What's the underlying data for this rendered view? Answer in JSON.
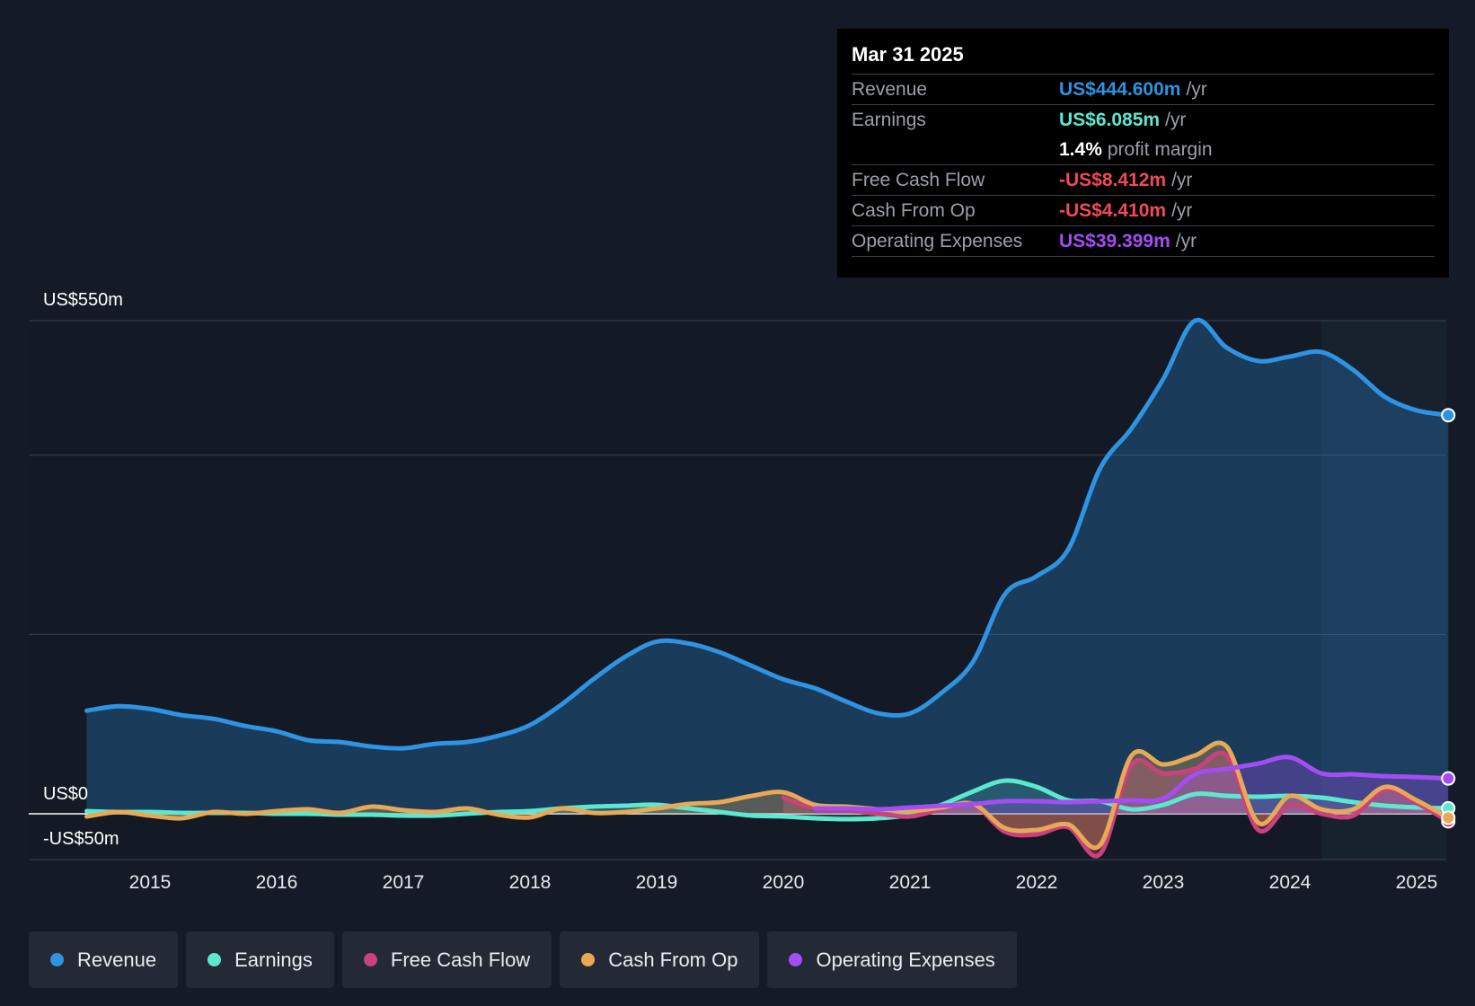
{
  "tooltip": {
    "date": "Mar 31 2025",
    "rows": [
      {
        "label": "Revenue",
        "value": "US$444.600m",
        "unit": "/yr",
        "color": "#2e93e2"
      },
      {
        "label": "Earnings",
        "value": "US$6.085m",
        "unit": "/yr",
        "color": "#5ce8cf"
      },
      {
        "label": "",
        "value": "1.4%",
        "unit": "profit margin",
        "color": "#ffffff"
      },
      {
        "label": "Free Cash Flow",
        "value": "-US$8.412m",
        "unit": "/yr",
        "color": "#ef4b55"
      },
      {
        "label": "Cash From Op",
        "value": "-US$4.410m",
        "unit": "/yr",
        "color": "#ef4b55"
      },
      {
        "label": "Operating Expenses",
        "value": "US$39.399m",
        "unit": "/yr",
        "color": "#a34ef3"
      }
    ]
  },
  "legend": [
    {
      "label": "Revenue",
      "color": "#2e93e2"
    },
    {
      "label": "Earnings",
      "color": "#5ce8cf"
    },
    {
      "label": "Free Cash Flow",
      "color": "#c9417d"
    },
    {
      "label": "Cash From Op",
      "color": "#e8a957"
    },
    {
      "label": "Operating Expenses",
      "color": "#a34ef3"
    }
  ],
  "chart_data": {
    "type": "area",
    "title": "",
    "ylim": [
      -50,
      550
    ],
    "y_tick_labels": {
      "top": "US$550m",
      "zero": "US$0",
      "bottom": "-US$50m"
    },
    "x_tick_labels": [
      "2015",
      "2016",
      "2017",
      "2018",
      "2019",
      "2020",
      "2021",
      "2022",
      "2023",
      "2024",
      "2025"
    ],
    "series": [
      {
        "name": "Revenue",
        "color": "#2e93e2",
        "points": [
          [
            2014.5,
            115
          ],
          [
            2014.75,
            120
          ],
          [
            2015.0,
            117
          ],
          [
            2015.25,
            110
          ],
          [
            2015.5,
            106
          ],
          [
            2015.75,
            98
          ],
          [
            2016.0,
            92
          ],
          [
            2016.25,
            82
          ],
          [
            2016.5,
            80
          ],
          [
            2016.75,
            75
          ],
          [
            2017.0,
            73
          ],
          [
            2017.25,
            78
          ],
          [
            2017.5,
            80
          ],
          [
            2017.75,
            87
          ],
          [
            2018.0,
            99
          ],
          [
            2018.25,
            122
          ],
          [
            2018.5,
            150
          ],
          [
            2018.75,
            175
          ],
          [
            2019.0,
            192
          ],
          [
            2019.25,
            190
          ],
          [
            2019.5,
            180
          ],
          [
            2019.75,
            165
          ],
          [
            2020.0,
            150
          ],
          [
            2020.25,
            140
          ],
          [
            2020.5,
            125
          ],
          [
            2020.75,
            112
          ],
          [
            2021.0,
            112
          ],
          [
            2021.25,
            135
          ],
          [
            2021.5,
            170
          ],
          [
            2021.75,
            245
          ],
          [
            2022.0,
            265
          ],
          [
            2022.25,
            295
          ],
          [
            2022.5,
            385
          ],
          [
            2022.75,
            430
          ],
          [
            2023.0,
            485
          ],
          [
            2023.25,
            550
          ],
          [
            2023.5,
            520
          ],
          [
            2023.75,
            505
          ],
          [
            2024.0,
            510
          ],
          [
            2024.25,
            515
          ],
          [
            2024.5,
            495
          ],
          [
            2024.75,
            465
          ],
          [
            2025.0,
            450
          ],
          [
            2025.25,
            444.6
          ]
        ]
      },
      {
        "name": "Earnings",
        "color": "#5ce8cf",
        "points": [
          [
            2014.5,
            3
          ],
          [
            2014.75,
            2
          ],
          [
            2015.0,
            2
          ],
          [
            2015.25,
            1
          ],
          [
            2015.5,
            1
          ],
          [
            2015.75,
            1
          ],
          [
            2016.0,
            0
          ],
          [
            2016.25,
            0
          ],
          [
            2016.5,
            -1
          ],
          [
            2016.75,
            -1
          ],
          [
            2017.0,
            -2
          ],
          [
            2017.25,
            -2
          ],
          [
            2017.5,
            0
          ],
          [
            2017.75,
            2
          ],
          [
            2018.0,
            3
          ],
          [
            2018.25,
            6
          ],
          [
            2018.5,
            8
          ],
          [
            2018.75,
            9
          ],
          [
            2019.0,
            10
          ],
          [
            2019.25,
            6
          ],
          [
            2019.5,
            2
          ],
          [
            2019.75,
            -2
          ],
          [
            2020.0,
            -3
          ],
          [
            2020.25,
            -5
          ],
          [
            2020.5,
            -6
          ],
          [
            2020.75,
            -5
          ],
          [
            2021.0,
            -1
          ],
          [
            2021.25,
            10
          ],
          [
            2021.5,
            25
          ],
          [
            2021.75,
            37
          ],
          [
            2022.0,
            30
          ],
          [
            2022.25,
            15
          ],
          [
            2022.5,
            14
          ],
          [
            2022.75,
            5
          ],
          [
            2023.0,
            10
          ],
          [
            2023.25,
            22
          ],
          [
            2023.5,
            20
          ],
          [
            2023.75,
            19
          ],
          [
            2024.0,
            20
          ],
          [
            2024.25,
            18
          ],
          [
            2024.5,
            13
          ],
          [
            2024.75,
            9
          ],
          [
            2025.0,
            7
          ],
          [
            2025.25,
            6.085
          ]
        ]
      },
      {
        "name": "Free Cash Flow",
        "color": "#c9417d",
        "points": [
          [
            2020.0,
            18
          ],
          [
            2020.25,
            6
          ],
          [
            2020.5,
            4
          ],
          [
            2020.75,
            0
          ],
          [
            2021.0,
            -3
          ],
          [
            2021.25,
            5
          ],
          [
            2021.5,
            10
          ],
          [
            2021.75,
            -20
          ],
          [
            2022.0,
            -23
          ],
          [
            2022.25,
            -15
          ],
          [
            2022.5,
            -45
          ],
          [
            2022.75,
            55
          ],
          [
            2023.0,
            45
          ],
          [
            2023.25,
            50
          ],
          [
            2023.5,
            65
          ],
          [
            2023.75,
            -18
          ],
          [
            2024.0,
            10
          ],
          [
            2024.25,
            0
          ],
          [
            2024.5,
            -2
          ],
          [
            2024.75,
            27
          ],
          [
            2025.0,
            12
          ],
          [
            2025.25,
            -8.412
          ]
        ]
      },
      {
        "name": "Cash From Op",
        "color": "#e8a957",
        "points": [
          [
            2014.5,
            -3
          ],
          [
            2014.75,
            2
          ],
          [
            2015.0,
            -2
          ],
          [
            2015.25,
            -5
          ],
          [
            2015.5,
            2
          ],
          [
            2015.75,
            0
          ],
          [
            2016.0,
            3
          ],
          [
            2016.25,
            5
          ],
          [
            2016.5,
            1
          ],
          [
            2016.75,
            8
          ],
          [
            2017.0,
            4
          ],
          [
            2017.25,
            2
          ],
          [
            2017.5,
            6
          ],
          [
            2017.75,
            -1
          ],
          [
            2018.0,
            -4
          ],
          [
            2018.25,
            6
          ],
          [
            2018.5,
            1
          ],
          [
            2018.75,
            2
          ],
          [
            2019.0,
            6
          ],
          [
            2019.25,
            11
          ],
          [
            2019.5,
            13
          ],
          [
            2019.75,
            20
          ],
          [
            2020.0,
            24
          ],
          [
            2020.25,
            10
          ],
          [
            2020.5,
            8
          ],
          [
            2020.75,
            5
          ],
          [
            2021.0,
            3
          ],
          [
            2021.25,
            7
          ],
          [
            2021.5,
            11
          ],
          [
            2021.75,
            -16
          ],
          [
            2022.0,
            -18
          ],
          [
            2022.25,
            -12
          ],
          [
            2022.5,
            -35
          ],
          [
            2022.75,
            65
          ],
          [
            2023.0,
            55
          ],
          [
            2023.25,
            65
          ],
          [
            2023.5,
            75
          ],
          [
            2023.75,
            -10
          ],
          [
            2024.0,
            20
          ],
          [
            2024.25,
            5
          ],
          [
            2024.5,
            5
          ],
          [
            2024.75,
            30
          ],
          [
            2025.0,
            15
          ],
          [
            2025.25,
            -4.41
          ]
        ]
      },
      {
        "name": "Operating Expenses",
        "color": "#a34ef3",
        "points": [
          [
            2020.25,
            6
          ],
          [
            2020.5,
            6
          ],
          [
            2020.75,
            5
          ],
          [
            2021.0,
            7
          ],
          [
            2021.25,
            9
          ],
          [
            2021.5,
            11
          ],
          [
            2021.75,
            14
          ],
          [
            2022.0,
            14
          ],
          [
            2022.25,
            13
          ],
          [
            2022.5,
            14
          ],
          [
            2022.75,
            15
          ],
          [
            2023.0,
            17
          ],
          [
            2023.25,
            44
          ],
          [
            2023.5,
            50
          ],
          [
            2023.75,
            56
          ],
          [
            2024.0,
            63
          ],
          [
            2024.25,
            45
          ],
          [
            2024.5,
            44
          ],
          [
            2024.75,
            42
          ],
          [
            2025.0,
            41
          ],
          [
            2025.25,
            39.399
          ]
        ]
      }
    ]
  }
}
